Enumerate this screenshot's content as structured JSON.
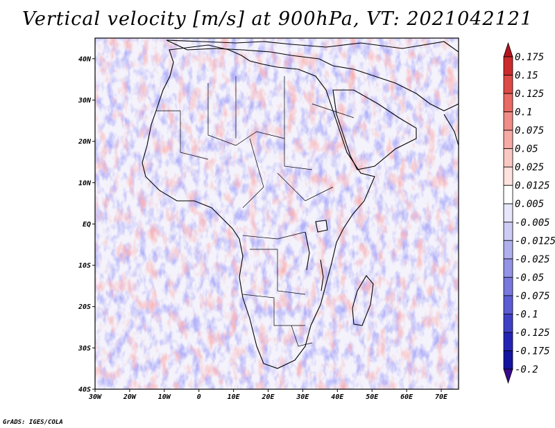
{
  "title": "Vertical velocity [m/s] at 900hPa, VT: 2021042121",
  "credit": "GrADS: IGES/COLA",
  "map": {
    "lon_range": [
      -30,
      75
    ],
    "lat_range": [
      -40,
      45
    ],
    "lon_ticks": [
      "30W",
      "20W",
      "10W",
      "0",
      "10E",
      "20E",
      "30E",
      "40E",
      "50E",
      "60E",
      "70E"
    ],
    "lat_ticks": [
      "40S",
      "30S",
      "20S",
      "10S",
      "EQ",
      "10N",
      "20N",
      "30N",
      "40N"
    ]
  },
  "colorbar": {
    "labels": [
      "0.175",
      "0.15",
      "0.125",
      "0.1",
      "0.075",
      "0.05",
      "0.025",
      "0.0125",
      "0.005",
      "-0.005",
      "-0.0125",
      "-0.025",
      "-0.05",
      "-0.075",
      "-0.1",
      "-0.125",
      "-0.175",
      "-0.2"
    ],
    "colors": [
      "#b4141e",
      "#cc2a2c",
      "#de4a46",
      "#ea6a64",
      "#f28c86",
      "#f7aaa4",
      "#fac8c2",
      "#fde2de",
      "#ffffff",
      "#e6e6fa",
      "#ccccf4",
      "#b0b0ee",
      "#9494e6",
      "#7878de",
      "#5c5cd4",
      "#4040c6",
      "#2424b4",
      "#1414a0",
      "#3a0a8c"
    ]
  }
}
